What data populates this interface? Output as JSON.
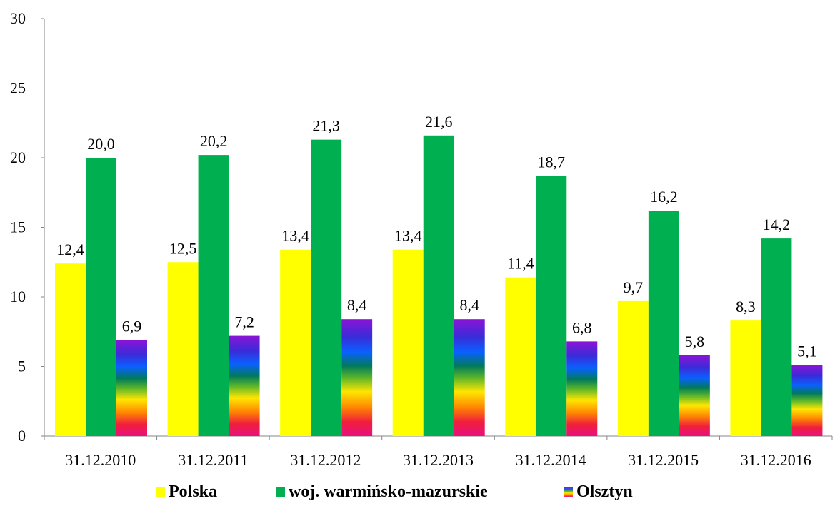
{
  "chart_data": {
    "type": "bar",
    "categories": [
      "31.12.2010",
      "31.12.2011",
      "31.12.2012",
      "31.12.2013",
      "31.12.2014",
      "31.12.2015",
      "31.12.2016"
    ],
    "series": [
      {
        "name": "Polska",
        "values": [
          12.4,
          12.5,
          13.4,
          13.4,
          11.4,
          9.7,
          8.3
        ],
        "color": "#ffff00"
      },
      {
        "name": "woj. warmińsko-mazurskie",
        "values": [
          20.0,
          20.2,
          21.3,
          21.6,
          18.7,
          16.2,
          14.2
        ],
        "color": "#00b050"
      },
      {
        "name": "Olsztyn",
        "values": [
          6.9,
          7.2,
          8.4,
          8.4,
          6.8,
          5.8,
          5.1
        ],
        "color": "rainbow"
      }
    ],
    "data_labels": [
      [
        "12,4",
        "12,5",
        "13,4",
        "13,4",
        "11,4",
        "9,7",
        "8,3"
      ],
      [
        "20,0",
        "20,2",
        "21,3",
        "21,6",
        "18,7",
        "16,2",
        "14,2"
      ],
      [
        "6,9",
        "7,2",
        "8,4",
        "8,4",
        "6,8",
        "5,8",
        "5,1"
      ]
    ],
    "y_ticks": [
      "0",
      "5",
      "10",
      "15",
      "20",
      "25",
      "30"
    ],
    "ylim": [
      0,
      30
    ],
    "grid": false,
    "legend_position": "bottom"
  }
}
